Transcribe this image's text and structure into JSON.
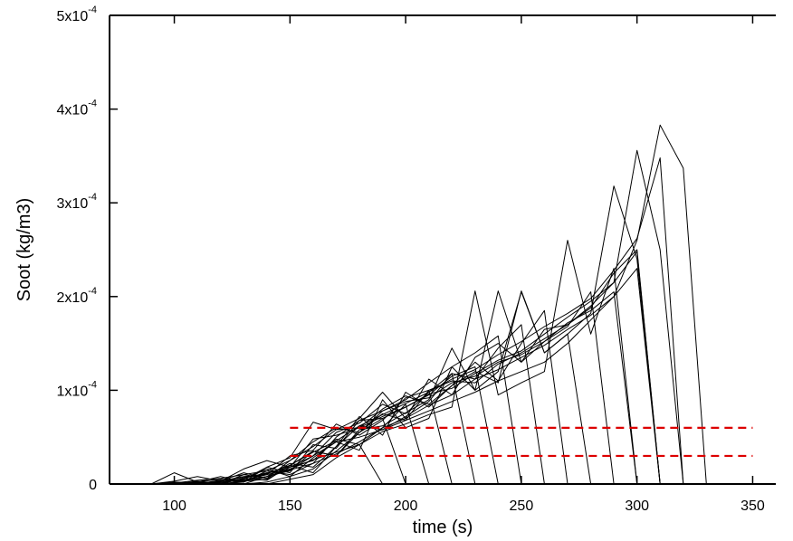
{
  "chart_data": {
    "type": "line",
    "xlabel": "time (s)",
    "ylabel": "Soot (kg/m3)",
    "xlim": [
      72,
      360
    ],
    "ylim": [
      0,
      0.0005
    ],
    "x_ticks": [
      100,
      150,
      200,
      250,
      300,
      350
    ],
    "x_tick_labels": [
      "100",
      "150",
      "200",
      "250",
      "300",
      "350"
    ],
    "y_ticks": [
      0,
      0.0001,
      0.0002,
      0.0003,
      0.0004,
      0.0005
    ],
    "y_tick_labels": [
      {
        "base": "0",
        "exp": ""
      },
      {
        "base": "1x10",
        "exp": "-4"
      },
      {
        "base": "2x10",
        "exp": "-4"
      },
      {
        "base": "3x10",
        "exp": "-4"
      },
      {
        "base": "4x10",
        "exp": "-4"
      },
      {
        "base": "5x10",
        "exp": "-4"
      }
    ],
    "grid": false,
    "line_color": "#000000",
    "reference_color": "#dd0000",
    "reference_lines": [
      6e-05,
      3e-05
    ],
    "reference_x_range": [
      150,
      350
    ],
    "series": [
      {
        "x": [
          80,
          90,
          100,
          110,
          120,
          130,
          140,
          150,
          160,
          170,
          180,
          190,
          200,
          210,
          220,
          230,
          240,
          250,
          260,
          270,
          280,
          290,
          300,
          310,
          320,
          330
        ],
        "y": [
          0,
          0,
          1e-06,
          2e-06,
          1e-06,
          6e-06,
          1.2e-05,
          1.8e-05,
          3e-05,
          4.5e-05,
          5e-05,
          5.8e-05,
          6.8e-05,
          7.8e-05,
          8.8e-05,
          9.8e-05,
          0.00011,
          0.00012,
          0.00013,
          0.00015,
          0.000175,
          0.0002,
          0.00026,
          0.000383,
          0.000337,
          0
        ]
      },
      {
        "x": [
          80,
          90,
          100,
          110,
          120,
          130,
          140,
          150,
          160,
          170,
          180,
          190,
          200,
          210,
          220,
          230,
          240,
          250,
          260,
          270,
          280,
          290,
          300,
          310,
          320
        ],
        "y": [
          0,
          0,
          1.2e-05,
          2e-06,
          8e-06,
          2e-06,
          1.8e-05,
          2.8e-05,
          6.6e-05,
          5.8e-05,
          7e-05,
          9.8e-05,
          7e-05,
          0.000112,
          9.5e-05,
          0.000135,
          0.00015,
          0.00013,
          0.000165,
          0.00017,
          0.00019,
          0.000215,
          0.000356,
          0.00025,
          0
        ]
      },
      {
        "x": [
          80,
          90,
          100,
          110,
          120,
          130,
          140,
          150,
          160,
          170,
          180,
          190,
          200,
          210,
          220,
          230,
          240,
          250,
          260,
          270,
          280,
          290,
          300,
          310
        ],
        "y": [
          0,
          0,
          3e-06,
          8e-06,
          3e-06,
          1.6e-05,
          2.5e-05,
          1.8e-05,
          4.8e-05,
          5.2e-05,
          6e-05,
          8e-05,
          9.4e-05,
          8.5e-05,
          0.000105,
          0.00012,
          0.000108,
          0.000206,
          0.00014,
          0.00016,
          0.000182,
          0.000318,
          0.00024,
          0
        ]
      },
      {
        "x": [
          80,
          90,
          100,
          110,
          120,
          130,
          140,
          150,
          160,
          170,
          180,
          190,
          200,
          210,
          220,
          230,
          240,
          250,
          260,
          270,
          280,
          290,
          300
        ],
        "y": [
          0,
          0,
          0,
          2e-06,
          5e-06,
          4e-06,
          1e-05,
          1.6e-05,
          2.6e-05,
          3.4e-05,
          4.2e-05,
          5.6e-05,
          6.4e-05,
          7.4e-05,
          8.2e-05,
          0.000206,
          9.5e-05,
          0.000108,
          0.00012,
          0.00026,
          0.00016,
          0.00023,
          0
        ]
      },
      {
        "x": [
          80,
          90,
          100,
          110,
          120,
          130,
          140,
          150,
          160,
          170,
          180,
          190,
          200,
          210,
          220,
          230,
          240,
          250,
          260,
          270,
          280,
          290
        ],
        "y": [
          0,
          0,
          0,
          0,
          3e-06,
          1.2e-05,
          6e-06,
          2e-05,
          3.5e-05,
          3e-05,
          5.8e-05,
          6.2e-05,
          7.6e-05,
          9e-05,
          0.000145,
          0.0001,
          0.000206,
          0.00013,
          0.000152,
          0.000168,
          0.000205,
          0
        ]
      },
      {
        "x": [
          80,
          90,
          100,
          110,
          120,
          130,
          140,
          150,
          160,
          170,
          180,
          190,
          200,
          210,
          220,
          230,
          240,
          250,
          260,
          270,
          280
        ],
        "y": [
          0,
          0,
          0,
          0,
          2e-06,
          5e-06,
          1.6e-05,
          8e-06,
          2.8e-05,
          4.5e-05,
          3.6e-05,
          9e-05,
          6e-05,
          7e-05,
          0.000125,
          0.0001,
          0.00012,
          0.000205,
          0.00014,
          0.00016,
          0
        ]
      },
      {
        "x": [
          80,
          90,
          100,
          110,
          120,
          130,
          140,
          150,
          160,
          170,
          180,
          190,
          200,
          210,
          220,
          230,
          240,
          250,
          260,
          270
        ],
        "y": [
          0,
          0,
          0,
          0,
          0,
          3e-06,
          8e-06,
          2.2e-05,
          1.8e-05,
          4e-05,
          7.2e-05,
          5.2e-05,
          9.8e-05,
          8.2e-05,
          0.000105,
          0.00013,
          0.00011,
          0.00015,
          0.000185,
          0
        ]
      },
      {
        "x": [
          80,
          90,
          100,
          110,
          120,
          130,
          140,
          150,
          160,
          170,
          180,
          190,
          200,
          210,
          220,
          230,
          240,
          250,
          260
        ],
        "y": [
          0,
          0,
          0,
          0,
          0,
          2e-06,
          1.2e-05,
          1.5e-05,
          3e-05,
          5.5e-05,
          6.5e-05,
          8.5e-05,
          7.5e-05,
          9.8e-05,
          0.000118,
          0.000112,
          0.000145,
          0.00017,
          0
        ]
      },
      {
        "x": [
          80,
          90,
          100,
          110,
          120,
          130,
          140,
          150,
          160,
          170,
          180,
          190,
          200,
          210,
          220,
          230,
          240,
          250
        ],
        "y": [
          0,
          0,
          0,
          3e-06,
          0,
          1e-05,
          6e-06,
          2.5e-05,
          4.5e-05,
          6e-05,
          5.5e-05,
          7.8e-05,
          9e-05,
          0.000108,
          0.000125,
          0.00014,
          0.000158,
          0
        ]
      },
      {
        "x": [
          80,
          90,
          100,
          110,
          120,
          130,
          140,
          150,
          160,
          170,
          180,
          190,
          200,
          210,
          220,
          230,
          240
        ],
        "y": [
          0,
          0,
          0,
          0,
          4e-06,
          2e-06,
          1.4e-05,
          1e-05,
          2.2e-05,
          5e-05,
          6.8e-05,
          7e-05,
          8.2e-05,
          9.5e-05,
          0.000115,
          0.000125,
          0
        ]
      },
      {
        "x": [
          80,
          90,
          100,
          110,
          120,
          130,
          140,
          150,
          160,
          170,
          180,
          190,
          200,
          210,
          220,
          230
        ],
        "y": [
          0,
          0,
          0,
          0,
          0,
          6e-06,
          4e-06,
          2e-05,
          1.2e-05,
          4e-05,
          6.2e-05,
          5.8e-05,
          7.2e-05,
          8.8e-05,
          0.000118,
          0
        ]
      },
      {
        "x": [
          80,
          90,
          100,
          110,
          120,
          130,
          140,
          150,
          160,
          170,
          180,
          190,
          200,
          210,
          220
        ],
        "y": [
          0,
          0,
          0,
          0,
          0,
          0,
          8e-06,
          1.4e-05,
          3.5e-05,
          3e-05,
          5.5e-05,
          7.5e-05,
          6.8e-05,
          0.0001,
          0
        ]
      },
      {
        "x": [
          80,
          90,
          100,
          110,
          120,
          130,
          140,
          150,
          160,
          170,
          180,
          190,
          200,
          210
        ],
        "y": [
          0,
          0,
          0,
          0,
          0,
          3e-06,
          5e-06,
          1.8e-05,
          2.5e-05,
          4.8e-05,
          4.2e-05,
          6e-05,
          8.5e-05,
          0
        ]
      },
      {
        "x": [
          80,
          90,
          100,
          110,
          120,
          130,
          140,
          150,
          160,
          170,
          180,
          190,
          200
        ],
        "y": [
          0,
          0,
          0,
          0,
          0,
          0,
          2e-06,
          8e-06,
          1.6e-05,
          3.5e-05,
          5.5e-05,
          7e-05,
          0
        ]
      },
      {
        "x": [
          80,
          90,
          100,
          110,
          120,
          130,
          140,
          150,
          160,
          170,
          180,
          190
        ],
        "y": [
          0,
          0,
          0,
          0,
          0,
          0,
          0,
          5e-06,
          1e-05,
          2.8e-05,
          4.2e-05,
          0
        ]
      },
      {
        "x": [
          80,
          90,
          100,
          110,
          120,
          130,
          140,
          150,
          160,
          170,
          180,
          190,
          200,
          210,
          220,
          230,
          240,
          250,
          260,
          270,
          280,
          290,
          300,
          310
        ],
        "y": [
          0,
          0,
          1e-06,
          4e-06,
          6e-06,
          1e-05,
          1.4e-05,
          2.5e-05,
          4e-05,
          5.8e-05,
          6e-05,
          7.2e-05,
          8.2e-05,
          9.6e-05,
          0.000102,
          0.000118,
          0.000132,
          0.000142,
          0.00016,
          0.000178,
          0.000195,
          0.000215,
          0.000248,
          0
        ]
      },
      {
        "x": [
          80,
          90,
          100,
          110,
          120,
          130,
          140,
          150,
          160,
          170,
          180,
          190,
          200,
          210,
          220,
          230,
          240,
          250,
          260,
          270,
          280,
          290,
          300,
          310
        ],
        "y": [
          0,
          0,
          0,
          1e-06,
          2e-06,
          4e-06,
          8e-06,
          1.5e-05,
          2.2e-05,
          3.2e-05,
          4.5e-05,
          6e-05,
          7e-05,
          8.4e-05,
          9.5e-05,
          0.000112,
          0.000122,
          0.000135,
          0.000148,
          0.000165,
          0.00018,
          0.0002,
          0.00023,
          0
        ]
      },
      {
        "x": [
          80,
          90,
          100,
          110,
          120,
          130,
          140,
          150,
          160,
          170,
          180,
          190,
          200,
          210,
          220,
          230,
          240,
          250,
          260,
          270,
          280,
          290,
          300,
          310
        ],
        "y": [
          0,
          0,
          0,
          0,
          3e-06,
          8e-06,
          1e-05,
          3e-05,
          3.6e-05,
          6.4e-05,
          5.2e-05,
          6.8e-05,
          9.2e-05,
          0.0001,
          0.00011,
          0.000108,
          0.000128,
          0.00014,
          0.000155,
          0.00017,
          0.000188,
          0.000225,
          0.00025,
          0
        ]
      },
      {
        "x": [
          80,
          90,
          100,
          110,
          120,
          130,
          140,
          150,
          160,
          170,
          180,
          190,
          200,
          210,
          220,
          230,
          240,
          250,
          260,
          270,
          280,
          290,
          300
        ],
        "y": [
          0,
          0,
          0,
          2e-06,
          1e-06,
          5e-06,
          1.8e-05,
          1.2e-05,
          4.2e-05,
          3.8e-05,
          6.8e-05,
          7.8e-05,
          8.8e-05,
          9.2e-05,
          0.000108,
          0.000115,
          0.00013,
          0.000138,
          0.000152,
          0.000172,
          0.000185,
          0.000205,
          0
        ]
      },
      {
        "x": [
          80,
          90,
          100,
          110,
          120,
          130,
          140,
          150,
          160,
          170,
          180,
          190,
          200,
          210,
          220,
          230,
          240,
          250,
          260,
          270,
          280,
          290,
          300,
          310,
          320
        ],
        "y": [
          0,
          0,
          2e-06,
          1e-06,
          3e-06,
          7e-06,
          1.1e-05,
          2e-05,
          3.4e-05,
          4.6e-05,
          6.2e-05,
          7.4e-05,
          8.6e-05,
          9.8e-05,
          0.000112,
          0.000122,
          0.000138,
          0.000152,
          0.000168,
          0.000182,
          0.000198,
          0.000228,
          0.000262,
          0.000348,
          0
        ]
      }
    ]
  }
}
